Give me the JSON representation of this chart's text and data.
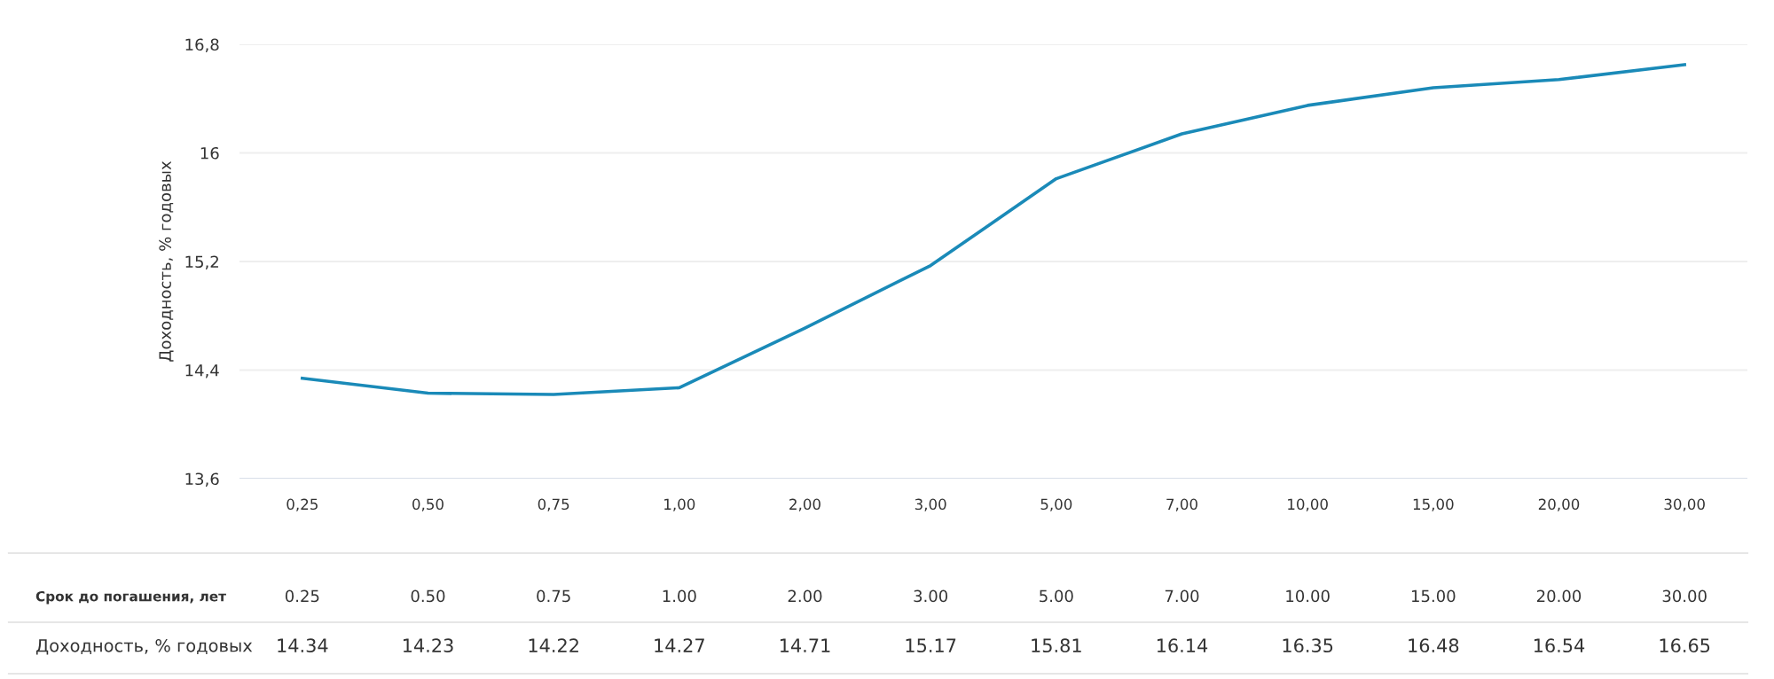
{
  "chart_data": {
    "type": "line",
    "ylabel": "Доходность, % годовых",
    "categories": [
      "0,25",
      "0,50",
      "0,75",
      "1,00",
      "2,00",
      "3,00",
      "5,00",
      "7,00",
      "10,00",
      "15,00",
      "20,00",
      "30,00"
    ],
    "series": [
      {
        "color": "#1a8ab8",
        "values": [
          14.34,
          14.23,
          14.22,
          14.27,
          14.71,
          15.17,
          15.81,
          16.14,
          16.35,
          16.48,
          16.54,
          16.65
        ],
        "value_labels": [
          "14.34",
          "14.23",
          "14.22",
          "14.27",
          "14.71",
          "15.17",
          "15.81",
          "16.14",
          "16.35",
          "16.48",
          "16.54",
          "16.65"
        ]
      }
    ],
    "ylim": [
      13.6,
      16.8
    ],
    "yticks": [
      {
        "value": 13.6,
        "label": "13,6"
      },
      {
        "value": 14.4,
        "label": "14,4"
      },
      {
        "value": 15.2,
        "label": "15,2"
      },
      16,
      {
        "value": 16.8,
        "label": "16,8"
      }
    ],
    "grid": "y",
    "annotations": [
      "Срок до погашения, лет",
      "0.25",
      "0.50",
      "0.75",
      "1.00",
      "2.00",
      "3.00",
      "5.00",
      "7.00",
      "10.00",
      "15.00",
      "20.00",
      "30.00",
      "Доходность, % годовых"
    ]
  }
}
